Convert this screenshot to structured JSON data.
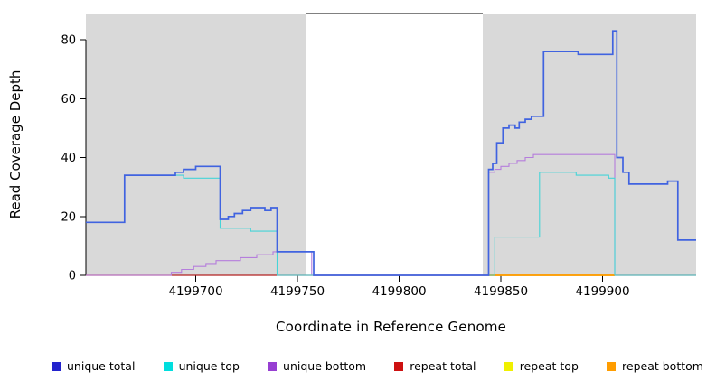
{
  "chart_data": {
    "type": "line",
    "subtype": "step-coverage",
    "title": "",
    "xlabel": "Coordinate in Reference Genome",
    "ylabel": "Read Coverage Depth",
    "x_domain": [
      4199646,
      4199946
    ],
    "y_domain": [
      0,
      89
    ],
    "x_ticks": [
      4199700,
      4199750,
      4199800,
      4199850,
      4199900
    ],
    "y_ticks": [
      0,
      20,
      40,
      60,
      80
    ],
    "grid": false,
    "legend_position": "bottom",
    "background_regions": [
      {
        "from": 4199646,
        "to": 4199754,
        "color": "#d9d9d9"
      },
      {
        "from": 4199841,
        "to": 4199946,
        "color": "#d9d9d9"
      }
    ],
    "uncovered_gap": [
      4199754,
      4199841
    ],
    "series": [
      {
        "name": "repeat total",
        "color": "#b22222",
        "width": 1.2,
        "points": [
          [
            4199646,
            0
          ],
          [
            4199946,
            0
          ]
        ]
      },
      {
        "name": "repeat top",
        "color": "#f0f000",
        "width": 1.2,
        "points": [
          [
            4199844,
            0
          ],
          [
            4199906,
            0
          ]
        ]
      },
      {
        "name": "repeat bottom",
        "color": "#ff9d00",
        "width": 1.8,
        "points": [
          [
            4199844,
            0
          ],
          [
            4199906,
            0
          ]
        ]
      },
      {
        "name": "unique bottom",
        "color": "#b57edc",
        "width": 1.1,
        "points": [
          [
            4199646,
            0
          ],
          [
            4199688,
            1
          ],
          [
            4199693,
            2
          ],
          [
            4199699,
            3
          ],
          [
            4199705,
            4
          ],
          [
            4199710,
            5
          ],
          [
            4199722,
            6
          ],
          [
            4199730,
            7
          ],
          [
            4199738,
            8
          ],
          [
            4199757,
            0
          ],
          [
            4199844,
            35
          ],
          [
            4199847,
            36
          ],
          [
            4199850,
            37
          ],
          [
            4199854,
            38
          ],
          [
            4199858,
            39
          ],
          [
            4199862,
            40
          ],
          [
            4199866,
            41
          ],
          [
            4199906,
            0
          ],
          [
            4199946,
            0
          ]
        ]
      },
      {
        "name": "unique top",
        "color": "#45d4d8",
        "width": 1.1,
        "points": [
          [
            4199646,
            18
          ],
          [
            4199665,
            34
          ],
          [
            4199694,
            33
          ],
          [
            4199712,
            16
          ],
          [
            4199727,
            15
          ],
          [
            4199740,
            0
          ],
          [
            4199847,
            13
          ],
          [
            4199869,
            35
          ],
          [
            4199887,
            34
          ],
          [
            4199903,
            33
          ],
          [
            4199906,
            0
          ],
          [
            4199946,
            0
          ]
        ]
      },
      {
        "name": "unique total",
        "color": "#4063e0",
        "width": 1.7,
        "points": [
          [
            4199646,
            18
          ],
          [
            4199665,
            34
          ],
          [
            4199690,
            35
          ],
          [
            4199694,
            36
          ],
          [
            4199700,
            37
          ],
          [
            4199712,
            19
          ],
          [
            4199716,
            20
          ],
          [
            4199719,
            21
          ],
          [
            4199723,
            22
          ],
          [
            4199727,
            23
          ],
          [
            4199734,
            22
          ],
          [
            4199737,
            23
          ],
          [
            4199740,
            8
          ],
          [
            4199758,
            0
          ],
          [
            4199844,
            36
          ],
          [
            4199846,
            38
          ],
          [
            4199848,
            45
          ],
          [
            4199851,
            50
          ],
          [
            4199854,
            51
          ],
          [
            4199857,
            50
          ],
          [
            4199859,
            52
          ],
          [
            4199862,
            53
          ],
          [
            4199865,
            54
          ],
          [
            4199871,
            76
          ],
          [
            4199888,
            75
          ],
          [
            4199905,
            83
          ],
          [
            4199907,
            40
          ],
          [
            4199910,
            35
          ],
          [
            4199913,
            31
          ],
          [
            4199932,
            32
          ],
          [
            4199937,
            12
          ],
          [
            4199946,
            12
          ]
        ]
      }
    ],
    "legend": [
      {
        "label": "unique total",
        "color": "#2323cd"
      },
      {
        "label": "unique top",
        "color": "#00dede"
      },
      {
        "label": "unique bottom",
        "color": "#973fd2"
      },
      {
        "label": "repeat total",
        "color": "#cd1111"
      },
      {
        "label": "repeat top",
        "color": "#f0f000"
      },
      {
        "label": "repeat bottom",
        "color": "#ff9d00"
      }
    ]
  }
}
